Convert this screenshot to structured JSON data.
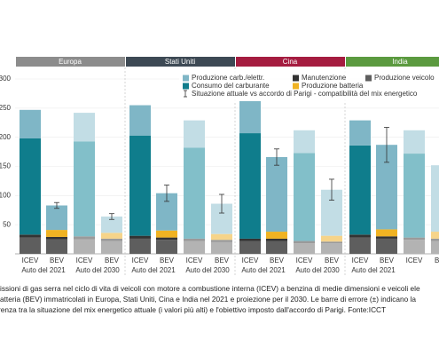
{
  "chart_data": {
    "type": "bar",
    "regions": [
      {
        "name": "Europa",
        "color": "#8c8c8c"
      },
      {
        "name": "Stati Uniti",
        "color": "#3d4954"
      },
      {
        "name": "Cina",
        "color": "#a51c40"
      },
      {
        "name": "India",
        "color": "#5b9a3f"
      }
    ],
    "categories": [
      "ICEV",
      "BEV",
      "ICEV",
      "BEV",
      "ICEV",
      "BEV",
      "ICEV",
      "BEV",
      "ICEV",
      "BEV",
      "ICEV",
      "BEV",
      "ICEV",
      "BEV",
      "ICEV",
      "BEV"
    ],
    "groups": [
      "Auto del 2021",
      "Auto del 2030",
      "Auto del 2021",
      "Auto del 2030",
      "Auto del 2021",
      "Auto del 2030",
      "Auto del 2021",
      null
    ],
    "series": [
      {
        "name": "Produzione veicolo",
        "color": "#5e5e5e",
        "light_color": "#b3b3b3",
        "values": [
          28,
          25,
          25,
          22,
          26,
          24,
          22,
          20,
          22,
          22,
          18,
          18,
          28,
          26,
          24,
          22
        ]
      },
      {
        "name": "Manutenzione",
        "color": "#333333",
        "light_color": "#9a9a9a",
        "values": [
          5,
          4,
          5,
          4,
          5,
          4,
          4,
          4,
          4,
          4,
          4,
          3,
          5,
          4,
          4,
          4
        ]
      },
      {
        "name": "Produzione batteria",
        "color": "#f0b323",
        "light_color": "#f6d48a",
        "values": [
          0,
          12,
          0,
          10,
          0,
          12,
          0,
          10,
          0,
          12,
          0,
          10,
          0,
          12,
          0,
          12
        ]
      },
      {
        "name": "Consumo del carburante",
        "color": "#0f7d8c",
        "light_color": "#82bfc9",
        "values": [
          165,
          0,
          163,
          0,
          172,
          0,
          156,
          0,
          181,
          0,
          151,
          0,
          153,
          0,
          144,
          0
        ]
      },
      {
        "name": "Produzione carb./elettr.",
        "color": "#7fb6c6",
        "light_color": "#c2dde5",
        "values": [
          49,
          42,
          49,
          28,
          52,
          64,
          47,
          52,
          55,
          128,
          39,
          79,
          43,
          145,
          40,
          114
        ]
      }
    ],
    "errors": [
      null,
      5,
      null,
      5,
      null,
      14,
      null,
      16,
      null,
      14,
      null,
      18,
      null,
      30,
      null,
      null
    ],
    "error_legend": "Situazione attuale  vs  accordo di Parigi - compatibilità del mix energetico",
    "ylim": [
      0,
      300
    ],
    "yticks": [
      50,
      100,
      150,
      200,
      250,
      300
    ],
    "caption": [
      "issioni di gas serra nel ciclo di vita di veicoli con motore a combustione interna (ICEV) a benzina di medie dimensioni e veicoli ele",
      "atteria (BEV) immatricolati in Europa, Stati Uniti, Cina e India nel 2021 e proiezione per il 2030. Le barre di errore (±) indicano la",
      "renza tra la situazione del mix energetico attuale (i valori più alti) e l'obiettivo imposto dall'accordo di Parigi. Fonte:ICCT"
    ]
  }
}
